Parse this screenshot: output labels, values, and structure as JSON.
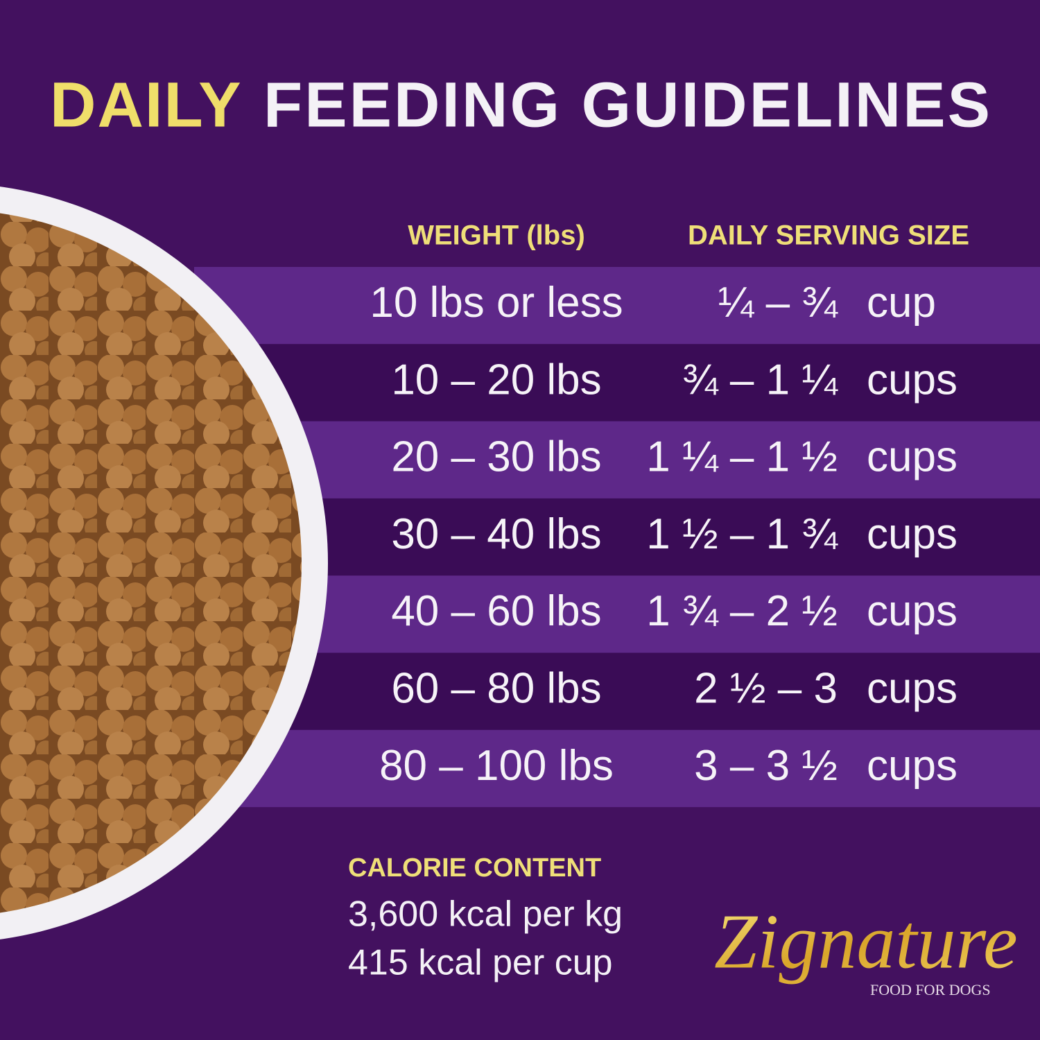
{
  "header": {
    "title_highlight": "DAILY",
    "title_rest": "FEEDING GUIDELINES"
  },
  "table": {
    "columns": [
      "WEIGHT (lbs)",
      "DAILY SERVING SIZE"
    ],
    "rows": [
      {
        "weight": "10 lbs or less",
        "serving": "¼ – ¾",
        "unit": "cup"
      },
      {
        "weight": "10 – 20 lbs",
        "serving": "¾ – 1 ¼",
        "unit": "cups"
      },
      {
        "weight": "20 – 30 lbs",
        "serving": "1 ¼ – 1 ½",
        "unit": "cups"
      },
      {
        "weight": "30 – 40 lbs",
        "serving": "1 ½ – 1 ¾",
        "unit": "cups"
      },
      {
        "weight": "40 – 60 lbs",
        "serving": "1 ¾ – 2 ½",
        "unit": "cups"
      },
      {
        "weight": "60 – 80 lbs",
        "serving": "2 ½ – 3",
        "unit": "cups"
      },
      {
        "weight": "80 – 100 lbs",
        "serving": "3 – 3 ½",
        "unit": "cups"
      }
    ]
  },
  "calories": {
    "heading": "CALORIE CONTENT",
    "lines": [
      "3,600 kcal per kg",
      "415 kcal per cup"
    ]
  },
  "brand": {
    "name": "Zignature",
    "tagline": "FOOD FOR DOGS"
  }
}
